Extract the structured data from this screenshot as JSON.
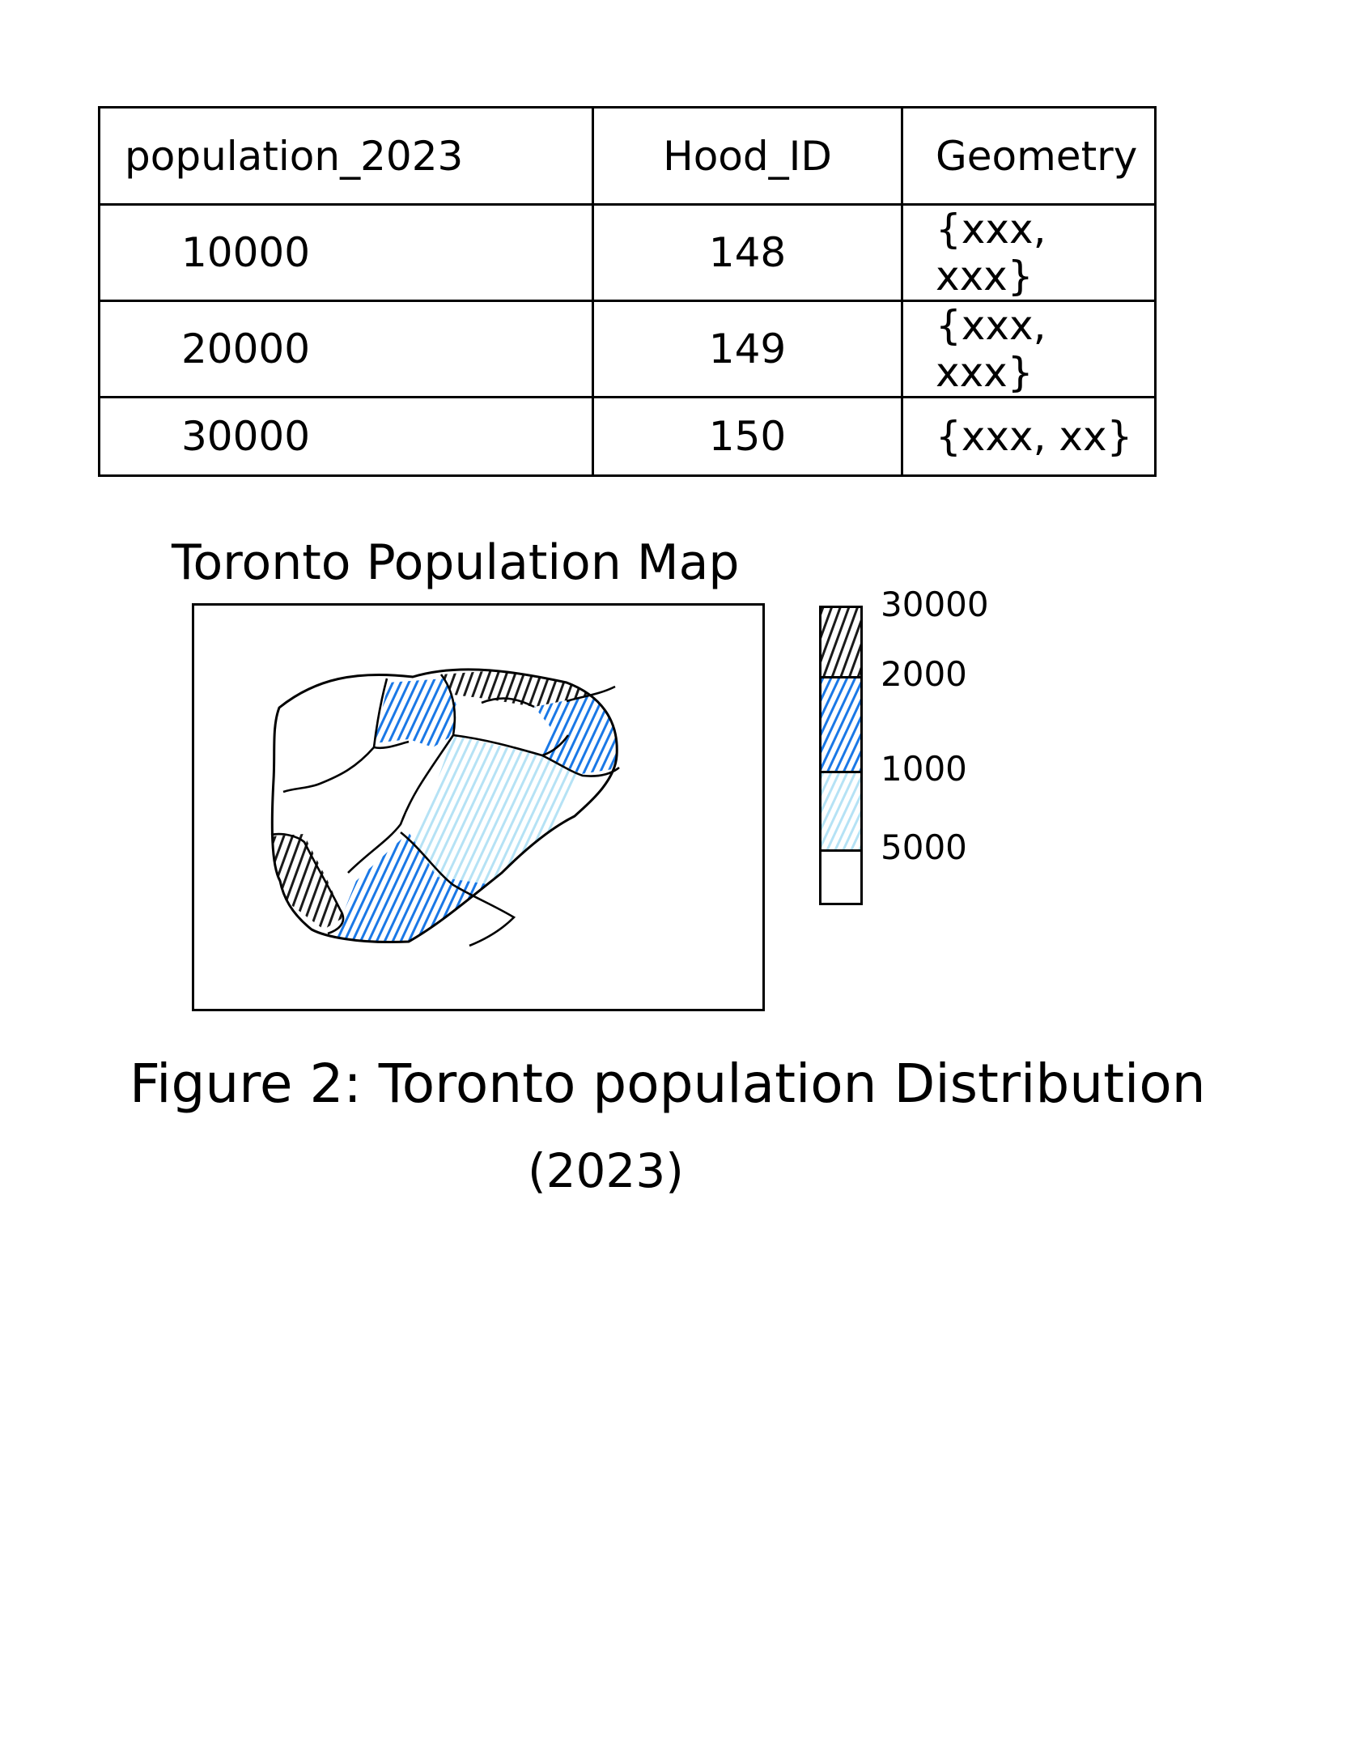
{
  "table": {
    "headers": [
      "population_2023",
      "Hood_ID",
      "Geometry"
    ],
    "rows": [
      [
        "10000",
        "148",
        "{xxx, xxx}"
      ],
      [
        "20000",
        "149",
        "{xxx, xxx}"
      ],
      [
        "30000",
        "150",
        "{xxx, xx}"
      ]
    ]
  },
  "map": {
    "title": "Toronto Population Map",
    "legend": {
      "labels": [
        "30000",
        "2000",
        "1000",
        "5000"
      ],
      "classes": [
        {
          "color": "#1a1a1a"
        },
        {
          "color": "#1a78e6"
        },
        {
          "color": "#b5e2f5"
        },
        {
          "color": "#ffffff"
        }
      ]
    },
    "region_colors": {
      "dark": "#1a1a1a",
      "blue": "#1a78e6",
      "light_blue": "#b5e2f5",
      "none": "#ffffff"
    }
  },
  "caption": {
    "line1": "Figure 2: Toronto population Distribution",
    "line2": "(2023)"
  }
}
